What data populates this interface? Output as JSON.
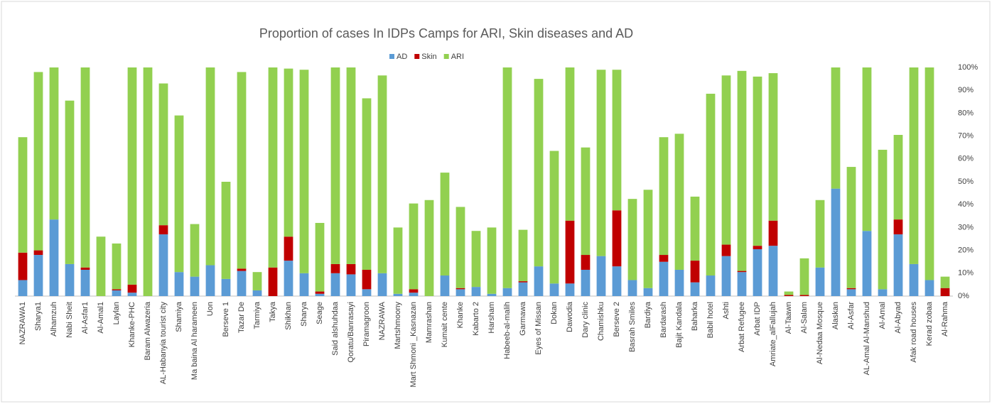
{
  "chart_data": {
    "type": "stacked_bar",
    "title": "Proportion of cases In IDPs Camps for ARI, Skin diseases and AD",
    "categories": [
      "NAZRAWA1",
      "Sharya1",
      "Alhamzuh",
      "Nabi Sheit",
      "Al-Asfar1",
      "Al-Amal1",
      "Laylan",
      "Khanke-PHC",
      "Baram Alwazeria",
      "AL-Habanyia tourist city",
      "Shamiya",
      "Ma baina Al harameen",
      "Uon",
      "Berseve 1",
      "Tazar De",
      "Tarmiya",
      "Takya",
      "Shikhan",
      "Sharya",
      "Seage",
      "Said alshuhdaa",
      "Qoratu/Banrasayi",
      "Piramagroon",
      "NAZRAWA",
      "Martshmoony",
      "Mart Shmoni _Kasnazan",
      "Mamrashan",
      "Kumait cente",
      "Khanke",
      "Kabarto 2",
      "Harsham",
      "Habeeb-al-malih",
      "Garmawa",
      "Eyes of Missan",
      "Dokan",
      "Dawodia",
      "Dary clinic",
      "Chamishku",
      "Berseve 2",
      "Basrah Smiles",
      "Bardiya",
      "Bardarash",
      "Bajit Kandala",
      "Baharka",
      "Babil hotel",
      "Ashti",
      "Arbat Refugee",
      "Arbat IDP",
      "Amriate_alFallujah",
      "Al-Taawn",
      "Al-Salam",
      "Al-Nedaa Mosque",
      "Alaskan",
      "Al-Asfar",
      "AL-Amal Al-Manshud",
      "Al-Amal",
      "Al-Abyad",
      "Afak road houses",
      "Kerad zobaa",
      "Al-Rahma"
    ],
    "series": [
      {
        "name": "AD",
        "color": "#5b9bd5",
        "values": [
          7,
          18,
          33.5,
          14,
          11.5,
          0,
          2.5,
          1.5,
          0,
          27,
          10.5,
          8.5,
          13.5,
          7.5,
          11,
          2.5,
          0,
          15.5,
          10,
          1,
          10,
          9.5,
          3,
          10,
          1,
          1.5,
          0,
          9,
          3,
          4,
          1,
          3.5,
          6,
          13,
          5.5,
          5.5,
          11.5,
          17.5,
          13,
          7,
          3.5,
          15,
          11.5,
          6,
          9,
          17.5,
          10.5,
          20.5,
          22,
          0,
          0,
          12.5,
          47,
          3,
          28.5,
          3,
          27,
          14,
          7,
          0
        ]
      },
      {
        "name": "Skin",
        "color": "#c00000",
        "values": [
          12,
          2,
          0,
          0,
          1,
          0,
          0.5,
          3.5,
          0,
          4,
          0,
          0,
          0,
          0,
          1,
          0,
          12.5,
          10.5,
          0,
          1,
          4,
          4.5,
          8.5,
          0,
          0,
          1.5,
          0,
          0,
          0.5,
          0,
          0,
          0,
          0.5,
          0,
          0,
          27.5,
          6.5,
          0,
          24.5,
          0,
          0,
          3,
          0,
          9.5,
          0,
          5,
          0.5,
          1.5,
          11,
          0.5,
          0.5,
          0,
          0,
          0.5,
          0,
          0,
          6.5,
          0,
          0,
          3.5
        ]
      },
      {
        "name": "ARI",
        "color": "#92d050",
        "values": [
          50.5,
          78,
          66.5,
          71.5,
          87.5,
          26,
          20,
          95,
          100,
          62,
          68.5,
          23,
          86.5,
          42.5,
          86,
          8,
          87.5,
          73.5,
          89,
          30,
          86,
          86,
          75,
          86.5,
          29,
          37.5,
          42,
          45,
          35.5,
          24.5,
          29,
          96.5,
          22.5,
          82,
          58,
          67,
          47,
          81.5,
          61.5,
          35.5,
          43,
          51.5,
          59.5,
          28,
          79.5,
          74,
          87.5,
          74,
          64.5,
          1.5,
          16,
          29.5,
          53,
          53,
          71.5,
          61,
          37,
          86,
          93,
          5
        ]
      }
    ],
    "ylim": [
      0,
      100
    ],
    "yticks": [
      {
        "value": 0,
        "label": "0%"
      },
      {
        "value": 10,
        "label": "10%"
      },
      {
        "value": 20,
        "label": "20%"
      },
      {
        "value": 30,
        "label": "30%"
      },
      {
        "value": 40,
        "label": "40%"
      },
      {
        "value": 50,
        "label": "50%"
      },
      {
        "value": 60,
        "label": "60%"
      },
      {
        "value": 70,
        "label": "70%"
      },
      {
        "value": 80,
        "label": "80%"
      },
      {
        "value": 90,
        "label": "90%"
      },
      {
        "value": 100,
        "label": "100%"
      }
    ],
    "grid": false,
    "legend": "top"
  }
}
